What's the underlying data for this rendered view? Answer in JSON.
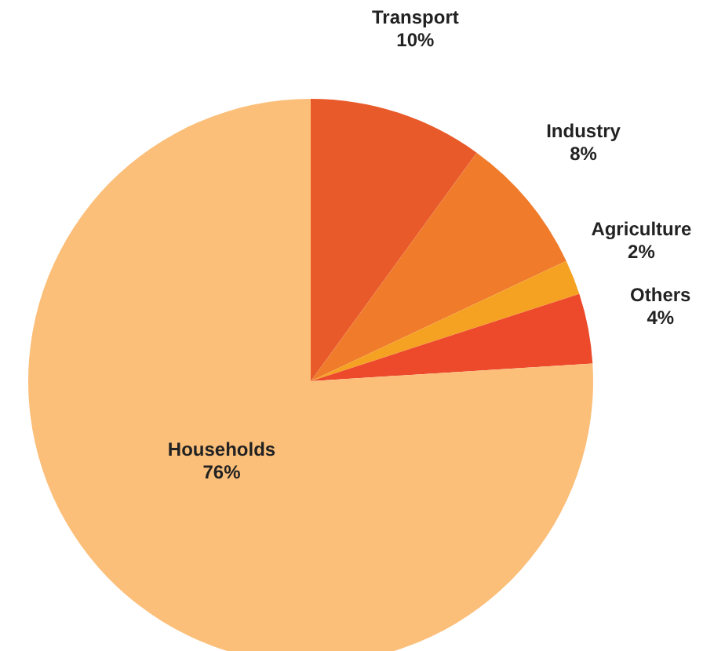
{
  "chart_data": {
    "type": "pie",
    "categories": [
      "Transport",
      "Industry",
      "Agriculture",
      "Others",
      "Households"
    ],
    "values": [
      10,
      8,
      2,
      4,
      76
    ],
    "value_labels": [
      "10%",
      "8%",
      "2%",
      "4%",
      "76%"
    ],
    "colors": [
      "#e85a2a",
      "#ef7b2b",
      "#f5a223",
      "#ec4a2b",
      "#fbbf7a"
    ],
    "legend": false
  }
}
